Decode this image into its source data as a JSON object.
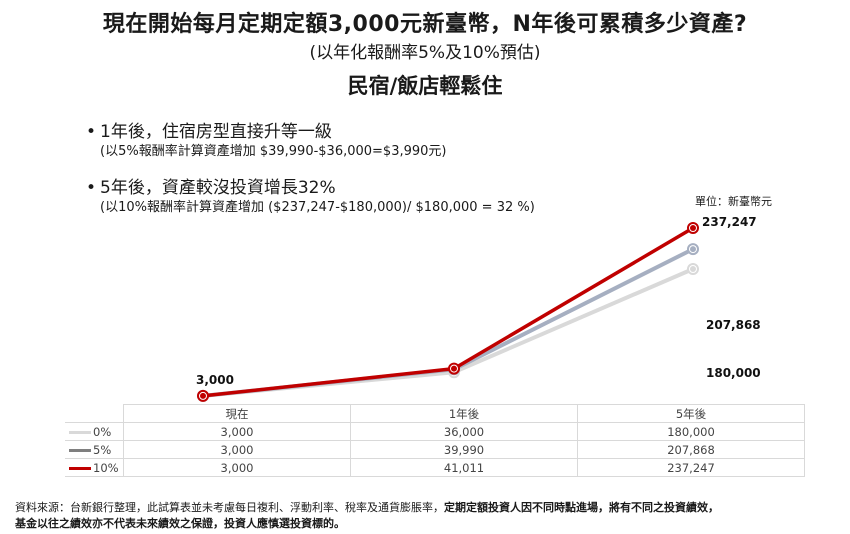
{
  "title": "現在開始每月定期定額3,000元新臺幣，N年後可累積多少資產?",
  "subtitle": "(以年化報酬率5%及10%預估)",
  "heading": "民宿/飯店輕鬆住",
  "bullets": [
    {
      "text": "1年後，住宿房型直接升等一級",
      "note": "(以5%報酬率計算資產增加 $39,990-$36,000=$3,990元)"
    },
    {
      "text": "5年後，資產較沒投資增長32%",
      "note": "(以10%報酬率計算資產增加 ($237,247-$180,000)/ $180,000 = 32 %)"
    }
  ],
  "unit_label": "單位：新臺幣元",
  "chart_data": {
    "type": "line",
    "categories": [
      "現在",
      "1年後",
      "5年後"
    ],
    "ylim": [
      0,
      240000
    ],
    "series": [
      {
        "name": "0%",
        "color": "#d9d9d9",
        "values": [
          3000,
          36000,
          180000
        ]
      },
      {
        "name": "5%",
        "color": "#a6afc1",
        "values": [
          3000,
          39990,
          207868
        ]
      },
      {
        "name": "10%",
        "color": "#c00000",
        "values": [
          3000,
          41011,
          237247
        ]
      }
    ],
    "labels": {
      "start": "3,000",
      "end_0": "180,000",
      "end_5": "207,868",
      "end_10": "237,247"
    }
  },
  "table": {
    "rows": [
      {
        "name": "0%",
        "cells": [
          "3,000",
          "36,000",
          "180,000"
        ]
      },
      {
        "name": "5%",
        "cells": [
          "3,000",
          "39,990",
          "207,868"
        ]
      },
      {
        "name": "10%",
        "cells": [
          "3,000",
          "41,011",
          "237,247"
        ]
      }
    ]
  },
  "source": {
    "line1_normal": "資料來源：台新銀行整理，此試算表並未考慮每日複利、浮動利率、稅率及通貨膨脹率，",
    "line1_bold": "定期定額投資人因不同時點進場，將有不同之投資績效，",
    "line2_bold": "基金以往之績效亦不代表未來績效之保證，投資人應慎選投資標的。"
  }
}
